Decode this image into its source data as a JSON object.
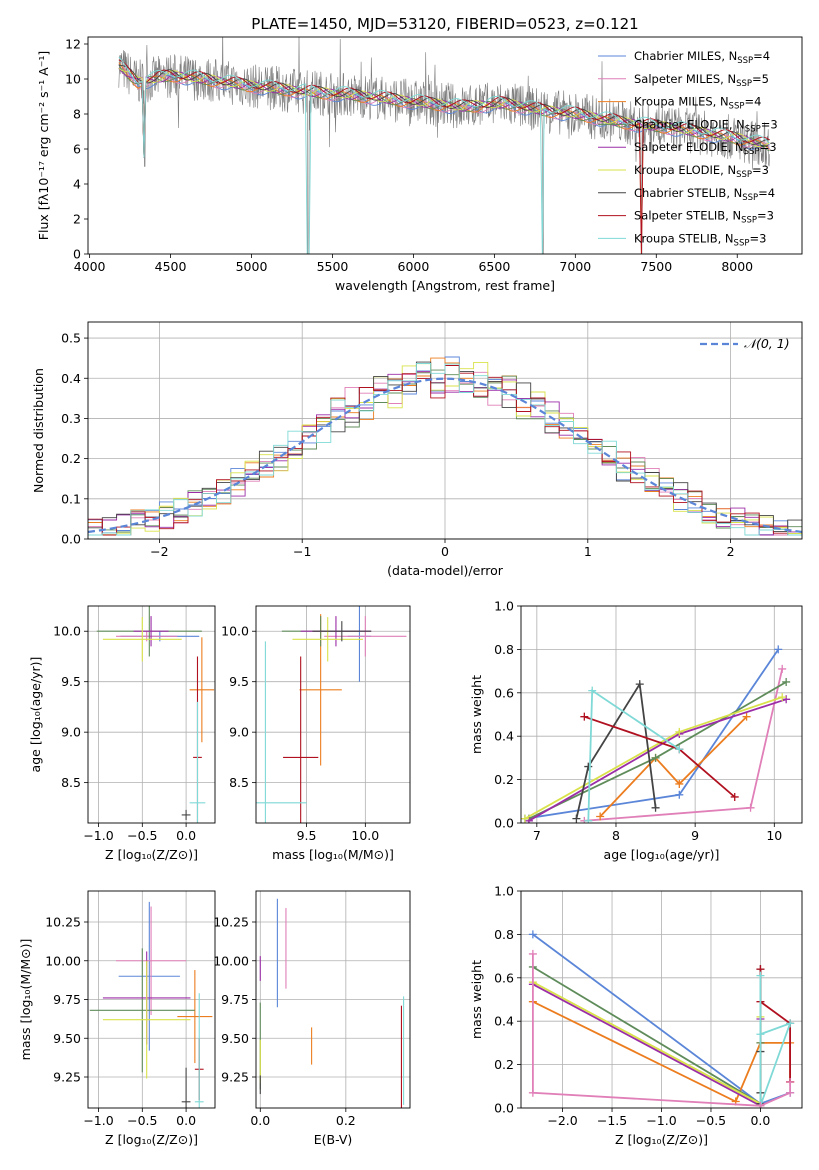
{
  "chart_data": [
    {
      "id": "spectrum",
      "type": "line",
      "title": "PLATE=1450, MJD=53120, FIBERID=0523, z=0.121",
      "xlabel": "wavelength [Angstrom, rest frame]",
      "ylabel": "Flux [fλ10⁻¹⁷ erg cm⁻² s⁻¹ A⁻¹]",
      "xlim": [
        3990,
        8400
      ],
      "ylim": [
        0,
        12.4
      ],
      "xticks": [
        4000,
        4500,
        5000,
        5500,
        6000,
        6500,
        7000,
        7500,
        8000
      ],
      "yticks": [
        0,
        2,
        4,
        6,
        8,
        10,
        12
      ],
      "grid": false,
      "legend_position": "top-right",
      "continuum": {
        "x": [
          4180,
          4300,
          4500,
          4700,
          5000,
          5300,
          5600,
          6000,
          6300,
          6560,
          6800,
          7000,
          7300,
          7600,
          8000,
          8200
        ],
        "y": [
          10.8,
          9.8,
          10.2,
          10.0,
          9.6,
          9.3,
          9.1,
          8.7,
          8.4,
          8.6,
          8.2,
          8.0,
          7.5,
          7.2,
          6.6,
          6.2
        ]
      },
      "dips": [
        {
          "x": 4340,
          "y": 5.0
        },
        {
          "x": 5350,
          "y": 0
        },
        {
          "x": 6800,
          "y": 0
        },
        {
          "x": 7410,
          "y": 0
        }
      ],
      "series": [
        {
          "name": "Chabrier MILES, N",
          "sub": "SSP",
          "val": "=4",
          "color": "#5b86d8"
        },
        {
          "name": "Salpeter MILES, N",
          "sub": "SSP",
          "val": "=5",
          "color": "#e07fb8"
        },
        {
          "name": "Kroupa MILES, N",
          "sub": "SSP",
          "val": "=4",
          "color": "#ec7d1f"
        },
        {
          "name": "Chabrier ELODIE, N",
          "sub": "SSP",
          "val": "=3",
          "color": "#5f8c5a"
        },
        {
          "name": "Salpeter ELODIE, N",
          "sub": "SSP",
          "val": "=3",
          "color": "#9b2ea7"
        },
        {
          "name": "Kroupa ELODIE, N",
          "sub": "SSP",
          "val": "=3",
          "color": "#d9e24a"
        },
        {
          "name": "Chabrier STELIB, N",
          "sub": "SSP",
          "val": "=4",
          "color": "#444444"
        },
        {
          "name": "Salpeter STELIB, N",
          "sub": "SSP",
          "val": "=3",
          "color": "#b0101f"
        },
        {
          "name": "Kroupa STELIB, N",
          "sub": "SSP",
          "val": "=3",
          "color": "#7fd9d6"
        }
      ]
    },
    {
      "id": "residuals",
      "type": "line",
      "xlabel": "(data-model)/error",
      "ylabel": "Normed distribution",
      "xlim": [
        -2.5,
        2.5
      ],
      "ylim": [
        0,
        0.54
      ],
      "xticks": [
        -2,
        -1,
        0,
        1,
        2
      ],
      "yticks": [
        0.0,
        0.1,
        0.2,
        0.3,
        0.4,
        0.5
      ],
      "grid": true,
      "legend_position": "top-right",
      "gaussian_label": "𝒩(0, 1)",
      "gaussian_color": "#5b86d8",
      "bin_width": 0.1
    },
    {
      "id": "age_vs_Z",
      "type": "scatter",
      "xlabel": "Z [log₁₀(Z/Z⊙)]",
      "ylabel": "age  [log₁₀(age/yr)]",
      "xlim": [
        -1.12,
        0.33
      ],
      "ylim": [
        8.1,
        10.25
      ],
      "xticks": [
        -1.0,
        -0.5,
        0.0
      ],
      "yticks": [
        8.5,
        9.0,
        9.5,
        10.0
      ],
      "grid": true,
      "points": [
        {
          "x": -0.3,
          "xerr": 0.45,
          "y": 9.95,
          "yerr": 0.05,
          "color": "#5b86d8"
        },
        {
          "x": -0.45,
          "xerr": 0.35,
          "y": 9.95,
          "yerr": 0.05,
          "color": "#e07fb8"
        },
        {
          "x": 0.18,
          "xerr": 0.14,
          "y": 9.42,
          "yerr": 0.52,
          "color": "#ec7d1f"
        },
        {
          "x": -0.42,
          "xerr": 0.6,
          "y": 10.0,
          "yerr": 0.25,
          "color": "#5f8c5a"
        },
        {
          "x": -0.4,
          "xerr": 0.2,
          "y": 10.0,
          "yerr": 0.15,
          "color": "#9b2ea7"
        },
        {
          "x": -0.5,
          "xerr": 0.45,
          "y": 9.92,
          "yerr": 0.22,
          "color": "#d9e24a"
        },
        {
          "x": 0.0,
          "xerr": 0.05,
          "y": 8.18,
          "yerr": 0.05,
          "color": "#444444"
        },
        {
          "x": 0.13,
          "xerr": 0.05,
          "y": 8.75,
          "yerr": 1.0,
          "color": "#b0101f"
        },
        {
          "x": 0.13,
          "xerr": 0.09,
          "y": 8.3,
          "yerr": 1.0,
          "color": "#7fd9d6"
        }
      ]
    },
    {
      "id": "age_vs_mass",
      "type": "scatter",
      "xlabel": "mass [log₁₀(M/M⊙)]",
      "xlim": [
        9.07,
        10.38
      ],
      "ylim": [
        8.1,
        10.25
      ],
      "xticks": [
        9.5,
        10.0
      ],
      "yticks": [
        8.5,
        9.0,
        9.5,
        10.0
      ],
      "grid": true,
      "points": [
        {
          "x": 9.95,
          "xerr": 0.1,
          "y": 9.95,
          "yerr": 0.45,
          "color": "#5b86d8"
        },
        {
          "x": 10.0,
          "xerr": 0.35,
          "y": 9.95,
          "yerr": 0.2,
          "color": "#e07fb8"
        },
        {
          "x": 9.62,
          "xerr": 0.18,
          "y": 9.42,
          "yerr": 0.75,
          "color": "#ec7d1f"
        },
        {
          "x": 9.62,
          "xerr": 0.33,
          "y": 10.0,
          "yerr": 0.15,
          "color": "#5f8c5a"
        },
        {
          "x": 9.75,
          "xerr": 0.3,
          "y": 10.0,
          "yerr": 0.15,
          "color": "#9b2ea7"
        },
        {
          "x": 9.68,
          "xerr": 0.3,
          "y": 9.92,
          "yerr": 0.22,
          "color": "#d9e24a"
        },
        {
          "x": 9.8,
          "xerr": 0.25,
          "y": 10.0,
          "yerr": 0.1,
          "color": "#444444"
        },
        {
          "x": 9.45,
          "xerr": 0.15,
          "y": 8.75,
          "yerr": 1.0,
          "color": "#b0101f"
        },
        {
          "x": 9.15,
          "xerr": 0.35,
          "y": 8.3,
          "yerr": 1.6,
          "color": "#7fd9d6"
        }
      ]
    },
    {
      "id": "weight_vs_age",
      "type": "line",
      "xlabel": "age  [log₁₀(age/yr)]",
      "ylabel": "mass weight",
      "xlim": [
        6.8,
        10.35
      ],
      "ylim": [
        0,
        1.0
      ],
      "xticks": [
        7,
        8,
        9,
        10
      ],
      "yticks": [
        0.0,
        0.2,
        0.4,
        0.6,
        0.8,
        1.0
      ],
      "grid": true,
      "series": [
        {
          "color": "#5b86d8",
          "x": [
            6.85,
            8.8,
            10.05
          ],
          "y": [
            0.02,
            0.13,
            0.8
          ]
        },
        {
          "color": "#e07fb8",
          "x": [
            7.6,
            9.7,
            10.1
          ],
          "y": [
            0.01,
            0.07,
            0.71
          ]
        },
        {
          "color": "#ec7d1f",
          "x": [
            7.8,
            8.5,
            8.8,
            9.65
          ],
          "y": [
            0.03,
            0.3,
            0.18,
            0.49
          ]
        },
        {
          "color": "#5f8c5a",
          "x": [
            6.9,
            8.5,
            10.15
          ],
          "y": [
            0.02,
            0.3,
            0.65
          ]
        },
        {
          "color": "#9b2ea7",
          "x": [
            6.9,
            8.8,
            10.15
          ],
          "y": [
            0.01,
            0.41,
            0.57
          ]
        },
        {
          "color": "#d9e24a",
          "x": [
            6.85,
            8.8,
            10.1
          ],
          "y": [
            0.02,
            0.42,
            0.58
          ]
        },
        {
          "color": "#444444",
          "x": [
            7.5,
            7.65,
            8.3,
            8.5
          ],
          "y": [
            0.02,
            0.26,
            0.64,
            0.07
          ]
        },
        {
          "color": "#b0101f",
          "x": [
            7.6,
            8.8,
            9.5
          ],
          "y": [
            0.49,
            0.34,
            0.12
          ]
        },
        {
          "color": "#7fd9d6",
          "x": [
            7.65,
            7.7,
            8.8
          ],
          "y": [
            0.01,
            0.61,
            0.34
          ]
        }
      ]
    },
    {
      "id": "mass_vs_Z",
      "type": "scatter",
      "xlabel": "Z [log₁₀(Z/Z⊙)]",
      "ylabel": "mass [log₁₀(M/M⊙)]",
      "xlim": [
        -1.12,
        0.33
      ],
      "ylim": [
        9.05,
        10.45
      ],
      "xticks": [
        -1.0,
        -0.5,
        0.0
      ],
      "yticks": [
        9.25,
        9.5,
        9.75,
        10.0,
        10.25
      ],
      "grid": true,
      "points": [
        {
          "x": -0.42,
          "xerr": 0.35,
          "y": 9.9,
          "yerr": 0.48,
          "color": "#5b86d8"
        },
        {
          "x": -0.4,
          "xerr": 0.4,
          "y": 10.0,
          "yerr": 0.35,
          "color": "#e07fb8"
        },
        {
          "x": 0.1,
          "xerr": 0.2,
          "y": 9.64,
          "yerr": 0.3,
          "color": "#ec7d1f"
        },
        {
          "x": -0.5,
          "xerr": 0.6,
          "y": 9.68,
          "yerr": 0.4,
          "color": "#5f8c5a"
        },
        {
          "x": -0.45,
          "xerr": 0.5,
          "y": 9.76,
          "yerr": 0.3,
          "color": "#9b2ea7"
        },
        {
          "x": -0.45,
          "xerr": 0.5,
          "y": 9.62,
          "yerr": 0.38,
          "color": "#d9e24a"
        },
        {
          "x": 0.0,
          "xerr": 0.05,
          "y": 9.09,
          "yerr": 0.22,
          "color": "#444444"
        },
        {
          "x": 0.15,
          "xerr": 0.05,
          "y": 9.3,
          "yerr": 0.2,
          "color": "#b0101f"
        },
        {
          "x": 0.15,
          "xerr": 0.05,
          "y": 9.09,
          "yerr": 0.7,
          "color": "#7fd9d6"
        }
      ]
    },
    {
      "id": "mass_vs_ebv",
      "type": "scatter",
      "xlabel": "E(B-V)",
      "xlim": [
        -0.01,
        0.35
      ],
      "ylim": [
        9.05,
        10.45
      ],
      "xticks": [
        0.0,
        0.2
      ],
      "yticks": [
        9.25,
        9.5,
        9.75,
        10.0,
        10.25
      ],
      "grid": true,
      "points": [
        {
          "x": 0.04,
          "xerr": 0.0,
          "y": 10.05,
          "yerr": 0.35,
          "color": "#5b86d8"
        },
        {
          "x": 0.06,
          "xerr": 0.0,
          "y": 10.08,
          "yerr": 0.26,
          "color": "#e07fb8"
        },
        {
          "x": 0.12,
          "xerr": 0.0,
          "y": 9.45,
          "yerr": 0.12,
          "color": "#ec7d1f"
        },
        {
          "x": 0.0,
          "xerr": 0.0,
          "y": 9.45,
          "yerr": 0.28,
          "color": "#5f8c5a"
        },
        {
          "x": 0.0,
          "xerr": 0.0,
          "y": 9.95,
          "yerr": 0.08,
          "color": "#9b2ea7"
        },
        {
          "x": 0.0,
          "xerr": 0.0,
          "y": 9.35,
          "yerr": 0.14,
          "color": "#d9e24a"
        },
        {
          "x": 0.0,
          "xerr": 0.0,
          "y": 9.2,
          "yerr": 0.06,
          "color": "#444444"
        },
        {
          "x": 0.33,
          "xerr": 0.0,
          "y": 9.38,
          "yerr": 0.33,
          "color": "#b0101f"
        },
        {
          "x": 0.335,
          "xerr": 0.0,
          "y": 9.42,
          "yerr": 0.35,
          "color": "#7fd9d6"
        }
      ]
    },
    {
      "id": "weight_vs_Z",
      "type": "line",
      "xlabel": "Z [log₁₀(Z/Z⊙)]",
      "ylabel": "mass weight",
      "xlim": [
        -2.42,
        0.42
      ],
      "ylim": [
        0,
        1.0
      ],
      "xticks": [
        -2.0,
        -1.5,
        -1.0,
        -0.5,
        0.0
      ],
      "yticks": [
        0.0,
        0.2,
        0.4,
        0.6,
        0.8,
        1.0
      ],
      "grid": true,
      "series": [
        {
          "color": "#5b86d8",
          "x": [
            -2.3,
            0.0,
            0.3
          ],
          "y": [
            0.8,
            0.02,
            0.07
          ]
        },
        {
          "color": "#ec7d1f",
          "x": [
            -2.3,
            -0.25,
            0.0,
            0.3,
            0.3
          ],
          "y": [
            0.49,
            0.03,
            0.3,
            0.3,
            0.12
          ]
        },
        {
          "color": "#5f8c5a",
          "x": [
            -2.3,
            0.0,
            0.0
          ],
          "y": [
            0.65,
            0.02,
            0.3
          ]
        },
        {
          "color": "#9b2ea7",
          "x": [
            -2.3,
            0.0,
            0.0
          ],
          "y": [
            0.57,
            0.01,
            0.41
          ]
        },
        {
          "color": "#d9e24a",
          "x": [
            -2.3,
            0.0,
            0.0
          ],
          "y": [
            0.58,
            0.02,
            0.42
          ]
        },
        {
          "color": "#444444",
          "x": [
            0.0,
            0.0,
            0.0,
            0.0
          ],
          "y": [
            0.64,
            0.26,
            0.07,
            0.02
          ]
        },
        {
          "color": "#b0101f",
          "x": [
            0.0,
            0.0,
            0.3,
            0.3
          ],
          "y": [
            0.64,
            0.49,
            0.39,
            0.12
          ]
        },
        {
          "color": "#7fd9d6",
          "x": [
            0.0,
            0.0,
            0.3,
            0.0
          ],
          "y": [
            0.61,
            0.01,
            0.39,
            0.34
          ]
        },
        {
          "color": "#e07fb8",
          "x": [
            -2.3,
            -2.3,
            0.0,
            0.3,
            0.3
          ],
          "y": [
            0.71,
            0.07,
            0.01,
            0.07,
            0.12
          ]
        }
      ]
    }
  ]
}
